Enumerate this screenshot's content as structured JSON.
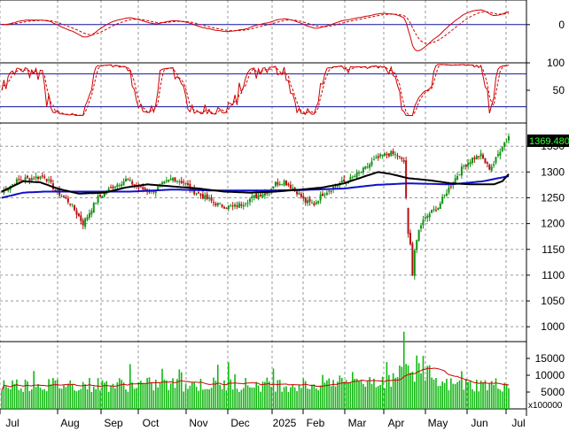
{
  "chart_data": {
    "type": "candlestick",
    "title": "",
    "last_price_label": "1369.480",
    "volume_unit_label": "x100000",
    "colors": {
      "up_candle": "#119311",
      "down_candle": "#b81010",
      "ma_fast": "#000000",
      "ma_slow": "#1010c8",
      "macd": "#d00000",
      "macd_signal": "#d00000",
      "stoch": "#d00000",
      "stoch_levels": "#1010a0",
      "volume_bar": "#11b811",
      "volume_ma": "#d00000",
      "grid": "#9a9a9a",
      "price_box_text": "#37ff37"
    },
    "x_labels": [
      "Jul",
      "Aug",
      "Sep",
      "Oct",
      "Nov",
      "Dec",
      "2025",
      "Feb",
      "Mar",
      "Apr",
      "May",
      "Jun",
      "Jul"
    ],
    "panels": {
      "macd": {
        "yticks": [
          "0"
        ],
        "zero_line": 0,
        "ylim": [
          -110,
          80
        ]
      },
      "stochastic": {
        "yticks": [
          "100",
          "50"
        ],
        "levels": [
          80,
          20
        ],
        "ylim": [
          0,
          100
        ]
      },
      "price": {
        "yticks": [
          "1350",
          "1300",
          "1250",
          "1200",
          "1150",
          "1100",
          "1050",
          "1000"
        ],
        "ylim": [
          978,
          1395
        ],
        "close_anchors": [
          [
            0,
            1262
          ],
          [
            8,
            1285
          ],
          [
            20,
            1292
          ],
          [
            25,
            1265
          ],
          [
            32,
            1240
          ],
          [
            38,
            1200
          ],
          [
            45,
            1250
          ],
          [
            52,
            1272
          ],
          [
            58,
            1285
          ],
          [
            65,
            1268
          ],
          [
            70,
            1262
          ],
          [
            75,
            1275
          ],
          [
            80,
            1288
          ],
          [
            85,
            1280
          ],
          [
            90,
            1262
          ],
          [
            96,
            1248
          ],
          [
            102,
            1235
          ],
          [
            108,
            1232
          ],
          [
            112,
            1238
          ],
          [
            118,
            1252
          ],
          [
            124,
            1262
          ],
          [
            128,
            1278
          ],
          [
            132,
            1282
          ],
          [
            138,
            1262
          ],
          [
            142,
            1242
          ],
          [
            146,
            1238
          ],
          [
            150,
            1258
          ],
          [
            154,
            1268
          ],
          [
            158,
            1278
          ],
          [
            162,
            1284
          ],
          [
            168,
            1300
          ],
          [
            174,
            1322
          ],
          [
            178,
            1332
          ],
          [
            182,
            1336
          ],
          [
            186,
            1330
          ],
          [
            188,
            1320
          ],
          [
            190,
            1180
          ],
          [
            191,
            1160
          ],
          [
            192,
            1100
          ],
          [
            193,
            1148
          ],
          [
            195,
            1188
          ],
          [
            197,
            1205
          ],
          [
            200,
            1220
          ],
          [
            204,
            1232
          ],
          [
            208,
            1262
          ],
          [
            212,
            1288
          ],
          [
            216,
            1312
          ],
          [
            220,
            1326
          ],
          [
            224,
            1332
          ],
          [
            226,
            1318
          ],
          [
            228,
            1308
          ],
          [
            230,
            1316
          ],
          [
            232,
            1334
          ],
          [
            234,
            1352
          ],
          [
            236,
            1362
          ],
          [
            237,
            1369.48
          ]
        ],
        "ma_fast_anchors": [
          [
            0,
            1262
          ],
          [
            10,
            1282
          ],
          [
            18,
            1280
          ],
          [
            26,
            1268
          ],
          [
            36,
            1258
          ],
          [
            48,
            1260
          ],
          [
            58,
            1270
          ],
          [
            68,
            1276
          ],
          [
            80,
            1272
          ],
          [
            92,
            1268
          ],
          [
            104,
            1262
          ],
          [
            116,
            1260
          ],
          [
            128,
            1262
          ],
          [
            140,
            1266
          ],
          [
            150,
            1270
          ],
          [
            160,
            1278
          ],
          [
            170,
            1292
          ],
          [
            176,
            1300
          ],
          [
            182,
            1296
          ],
          [
            190,
            1288
          ],
          [
            200,
            1284
          ],
          [
            210,
            1278
          ],
          [
            220,
            1276
          ],
          [
            230,
            1276
          ],
          [
            234,
            1282
          ],
          [
            237,
            1296
          ]
        ],
        "ma_slow_anchors": [
          [
            0,
            1250
          ],
          [
            10,
            1260
          ],
          [
            20,
            1262
          ],
          [
            40,
            1262
          ],
          [
            60,
            1262
          ],
          [
            80,
            1266
          ],
          [
            100,
            1264
          ],
          [
            120,
            1264
          ],
          [
            140,
            1265
          ],
          [
            160,
            1268
          ],
          [
            175,
            1275
          ],
          [
            190,
            1278
          ],
          [
            210,
            1276
          ],
          [
            225,
            1282
          ],
          [
            237,
            1292
          ]
        ]
      },
      "volume": {
        "yticks": [
          "15000",
          "10000",
          "5000"
        ],
        "ylim": [
          0,
          20000
        ]
      }
    }
  }
}
